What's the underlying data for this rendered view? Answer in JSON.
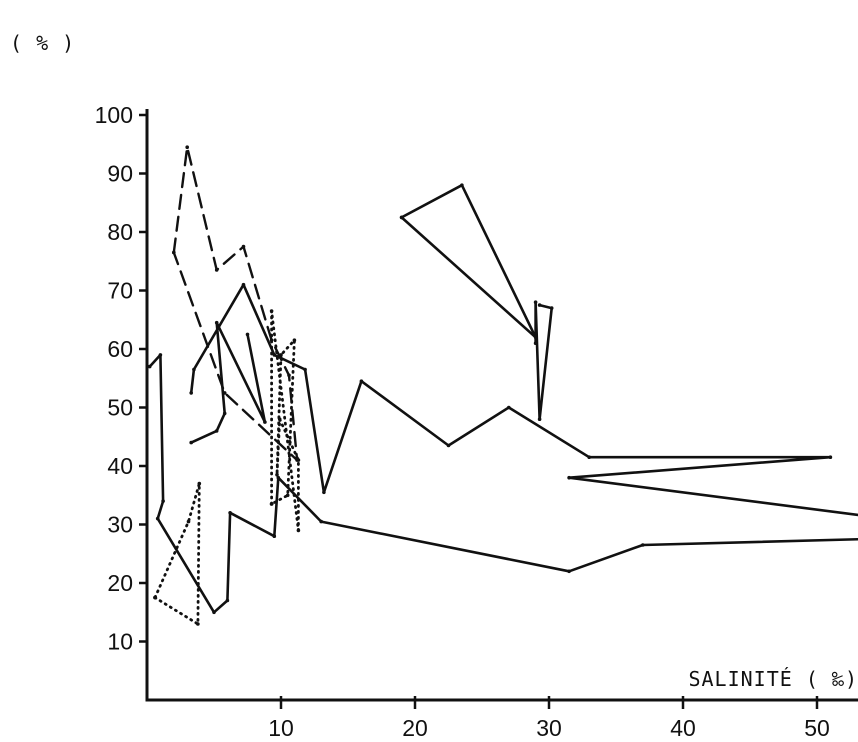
{
  "chart_data": {
    "type": "line",
    "xlabel": "SALINITÉ ( ‰)",
    "ylabel": "( % )",
    "xlim": [
      0,
      53
    ],
    "ylim": [
      0,
      100
    ],
    "x_ticks": [
      10,
      20,
      30,
      40,
      50
    ],
    "y_ticks": [
      10,
      20,
      30,
      40,
      50,
      60,
      70,
      80,
      90,
      100
    ],
    "grid": false,
    "series": [
      {
        "style": "solid",
        "values": [
          [
            0.2,
            57
          ],
          [
            1.0,
            59
          ],
          [
            1.2,
            34
          ],
          [
            0.8,
            31
          ],
          [
            5.0,
            15
          ],
          [
            6.0,
            17
          ],
          [
            6.2,
            32
          ],
          [
            9.5,
            28
          ],
          [
            9.8,
            38
          ],
          [
            13.0,
            30.5
          ],
          [
            31.5,
            22
          ],
          [
            37.0,
            26.5
          ],
          [
            53.5,
            27.5
          ]
        ]
      },
      {
        "style": "solid",
        "values": [
          [
            3.3,
            52.5
          ],
          [
            3.5,
            56.5
          ],
          [
            7.2,
            71
          ],
          [
            9.5,
            59
          ],
          [
            11.8,
            56.5
          ],
          [
            13.2,
            35.5
          ],
          [
            16.0,
            54.5
          ],
          [
            22.5,
            43.5
          ],
          [
            27.0,
            50
          ],
          [
            33.0,
            41.5
          ],
          [
            51.0,
            41.5
          ],
          [
            31.5,
            38
          ],
          [
            53.5,
            31.5
          ]
        ]
      },
      {
        "style": "solid",
        "values": [
          [
            3.3,
            44
          ],
          [
            5.2,
            46
          ],
          [
            5.8,
            49
          ],
          [
            5.2,
            64.5
          ],
          [
            8.8,
            47.5
          ],
          [
            7.5,
            62.5
          ]
        ]
      },
      {
        "style": "solid",
        "values": [
          [
            19.0,
            82.5
          ],
          [
            23.5,
            88
          ],
          [
            29.0,
            62
          ],
          [
            19.0,
            82.5
          ]
        ]
      },
      {
        "style": "solid",
        "values": [
          [
            29.0,
            61
          ],
          [
            29.0,
            68
          ],
          [
            29.3,
            48
          ],
          [
            30.2,
            67
          ],
          [
            29.3,
            67.5
          ]
        ]
      },
      {
        "style": "dashed",
        "values": [
          [
            2.0,
            76.5
          ],
          [
            3.0,
            94.5
          ],
          [
            5.2,
            73.5
          ],
          [
            7.2,
            77.5
          ],
          [
            9.3,
            61.5
          ],
          [
            10.6,
            55.5
          ],
          [
            11.2,
            41
          ],
          [
            5.8,
            52.5
          ],
          [
            2.0,
            76.5
          ]
        ]
      },
      {
        "style": "dotted",
        "values": [
          [
            0.6,
            17.5
          ],
          [
            3.8,
            13
          ],
          [
            3.9,
            37
          ],
          [
            3.1,
            30.5
          ],
          [
            0.6,
            17.5
          ]
        ]
      },
      {
        "style": "dotted",
        "values": [
          [
            9.3,
            33.5
          ],
          [
            9.3,
            66.5
          ],
          [
            11.3,
            29
          ],
          [
            11.3,
            41
          ],
          [
            9.9,
            48
          ],
          [
            9.7,
            38.5
          ],
          [
            10.0,
            59
          ],
          [
            11.0,
            61.5
          ],
          [
            10.5,
            35
          ],
          [
            9.3,
            33.5
          ]
        ]
      }
    ]
  }
}
